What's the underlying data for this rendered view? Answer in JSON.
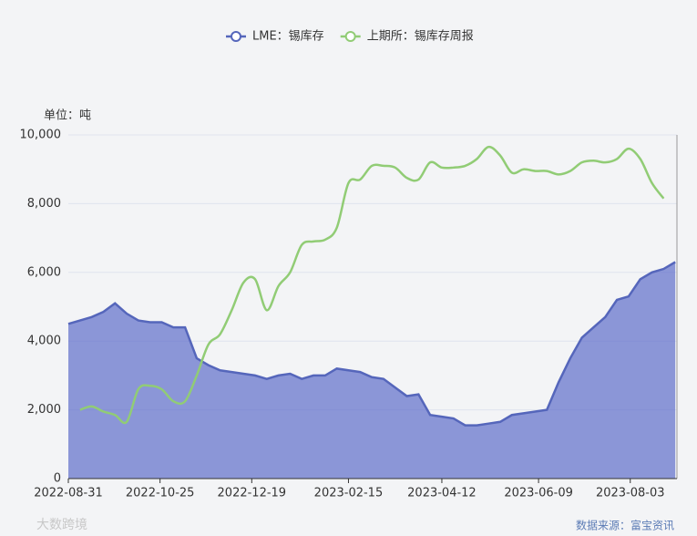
{
  "chart_data": {
    "type": "line",
    "unit_label": "单位：吨",
    "source": "数据来源：富宝资讯",
    "watermark": "大数跨境",
    "x": [
      "2022-08-31",
      "2022-09-07",
      "2022-09-14",
      "2022-09-21",
      "2022-09-28",
      "2022-10-05",
      "2022-10-12",
      "2022-10-19",
      "2022-10-26",
      "2022-11-02",
      "2022-11-09",
      "2022-11-16",
      "2022-11-23",
      "2022-11-30",
      "2022-12-07",
      "2022-12-14",
      "2022-12-21",
      "2022-12-28",
      "2023-01-04",
      "2023-01-11",
      "2023-01-18",
      "2023-01-25",
      "2023-02-01",
      "2023-02-08",
      "2023-02-15",
      "2023-02-22",
      "2023-03-01",
      "2023-03-08",
      "2023-03-15",
      "2023-03-22",
      "2023-03-29",
      "2023-04-05",
      "2023-04-12",
      "2023-04-19",
      "2023-04-26",
      "2023-05-03",
      "2023-05-10",
      "2023-05-17",
      "2023-05-24",
      "2023-05-31",
      "2023-06-07",
      "2023-06-14",
      "2023-06-21",
      "2023-06-28",
      "2023-07-05",
      "2023-07-12",
      "2023-07-19",
      "2023-07-26",
      "2023-08-02",
      "2023-08-09",
      "2023-08-16",
      "2023-08-23",
      "2023-08-30"
    ],
    "series": [
      {
        "name": "LME：锡库存",
        "color": "#5566bb",
        "area": true,
        "values": [
          4500,
          4600,
          4700,
          4850,
          5100,
          4800,
          4600,
          4550,
          4550,
          4400,
          4400,
          3500,
          3300,
          3150,
          3100,
          3050,
          3000,
          2900,
          3000,
          3050,
          2900,
          3000,
          3000,
          3200,
          3150,
          3100,
          2950,
          2900,
          2650,
          2400,
          2450,
          1850,
          1800,
          1750,
          1550,
          1550,
          1600,
          1650,
          1850,
          1900,
          1950,
          2000,
          2800,
          3500,
          4100,
          4400,
          4700,
          5200,
          5300,
          5800,
          6000,
          6100,
          6300
        ]
      },
      {
        "name": "上期所：锡库存周报",
        "color": "#91cc75",
        "area": false,
        "values": [
          null,
          2000,
          2100,
          1950,
          1850,
          1650,
          2600,
          2700,
          2600,
          2250,
          2250,
          3000,
          3900,
          4200,
          4900,
          5700,
          5800,
          4900,
          5600,
          6000,
          6800,
          6900,
          6950,
          7300,
          8600,
          8700,
          9100,
          9100,
          9050,
          8750,
          8700,
          9200,
          9050,
          9050,
          9100,
          9300,
          9650,
          9400,
          8900,
          9000,
          8950,
          8950,
          8850,
          8950,
          9200,
          9250,
          9200,
          9300,
          9600,
          9300,
          8600,
          8150,
          null
        ]
      }
    ],
    "xlim": [
      "2022-08-31",
      "2023-08-31"
    ],
    "xticks": [
      "2022-08-31",
      "2022-10-25",
      "2022-12-19",
      "2023-02-15",
      "2023-04-12",
      "2023-06-09",
      "2023-08-03"
    ],
    "ylim": [
      0,
      10000
    ],
    "yticks": [
      0,
      {
        "value": 2000,
        "label": "2,000"
      },
      {
        "value": 4000,
        "label": "4,000"
      },
      {
        "value": 6000,
        "label": "6,000"
      },
      {
        "value": 8000,
        "label": "8,000"
      },
      {
        "value": 10000,
        "label": "10,000"
      }
    ],
    "grid": true
  }
}
